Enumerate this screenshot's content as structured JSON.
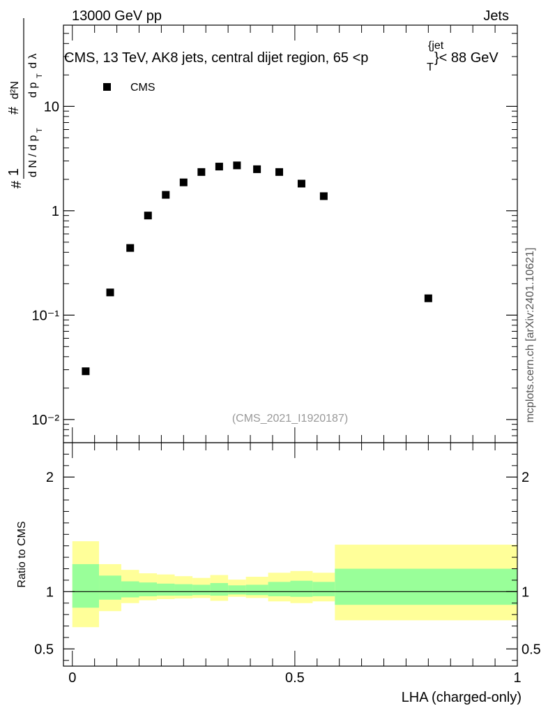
{
  "header": {
    "energy_label": "13000 GeV pp",
    "category_label": "Jets",
    "plot_title": "CMS, 13 TeV, AK8 jets, central dijet region, 65 <p",
    "plot_title_sub": "T",
    "plot_title_sup": "{jet",
    "plot_title_end": "}< 88 GeV",
    "watermark": "(CMS_2021_I1920187)",
    "side_credit": "mcplots.cern.ch [arXiv:2401.10621]"
  },
  "chart_data": [
    {
      "type": "scatter",
      "panel": "main",
      "title": "CMS, 13 TeV, AK8 jets, central dijet region, 65 < pT jet < 88 GeV",
      "ylabel": "1/(dN/dpT) d²N/(dpT dλ)",
      "yscale": "log",
      "ylim": [
        0.006,
        60
      ],
      "xlim": [
        -0.02,
        1.0
      ],
      "legend": {
        "position": "top-left",
        "entries": [
          {
            "name": "CMS",
            "marker": "square"
          }
        ]
      },
      "ytick_labels": [
        "10⁻²",
        "10⁻¹",
        "1",
        "10"
      ],
      "ytick_values": [
        0.01,
        0.1,
        1,
        10
      ],
      "series": [
        {
          "name": "CMS",
          "x": [
            0.03,
            0.085,
            0.13,
            0.17,
            0.21,
            0.25,
            0.29,
            0.33,
            0.37,
            0.415,
            0.465,
            0.515,
            0.565,
            0.8
          ],
          "y": [
            0.029,
            0.165,
            0.44,
            0.9,
            1.42,
            1.87,
            2.35,
            2.65,
            2.72,
            2.5,
            2.35,
            1.82,
            1.38,
            0.145
          ]
        }
      ]
    },
    {
      "type": "area",
      "panel": "ratio",
      "ylabel": "Ratio to CMS",
      "xlabel": "LHA (charged-only)",
      "xlim": [
        -0.02,
        1.0
      ],
      "ylim": [
        0.35,
        2.3
      ],
      "xtick_labels": [
        "0",
        "0.5",
        "1"
      ],
      "xtick_values": [
        0,
        0.5,
        1
      ],
      "ytick_labels": [
        "0.5",
        "1",
        "2"
      ],
      "ytick_values": [
        0.5,
        1,
        2
      ],
      "reference_line": 1,
      "bins": [
        0,
        0.06,
        0.11,
        0.15,
        0.19,
        0.23,
        0.27,
        0.31,
        0.35,
        0.39,
        0.44,
        0.49,
        0.54,
        0.59,
        1.0
      ],
      "inner_band": {
        "color": "#99ff99",
        "low": [
          0.86,
          0.93,
          0.95,
          0.96,
          0.965,
          0.965,
          0.97,
          0.965,
          0.975,
          0.97,
          0.96,
          0.955,
          0.96,
          0.885
        ],
        "high": [
          1.24,
          1.14,
          1.09,
          1.08,
          1.07,
          1.065,
          1.06,
          1.075,
          1.055,
          1.06,
          1.085,
          1.095,
          1.085,
          1.2
        ]
      },
      "outer_band": {
        "color": "#ffff99",
        "low": [
          0.69,
          0.83,
          0.9,
          0.925,
          0.935,
          0.94,
          0.945,
          0.92,
          0.955,
          0.945,
          0.915,
          0.9,
          0.915,
          0.75
        ],
        "high": [
          1.44,
          1.24,
          1.19,
          1.16,
          1.15,
          1.135,
          1.12,
          1.145,
          1.105,
          1.13,
          1.165,
          1.18,
          1.165,
          1.41
        ]
      },
      "colors": {
        "inner": "#99ff99",
        "outer": "#ffff99"
      }
    }
  ]
}
